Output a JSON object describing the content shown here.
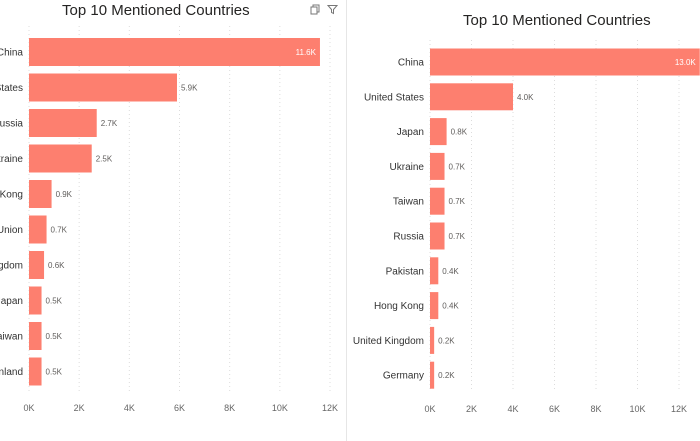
{
  "colors": {
    "bar": "#fd7f6f",
    "grid": "#dcdcdc",
    "text": "#252423"
  },
  "header_icons": [
    "copy-icon",
    "filter-icon"
  ],
  "chart_data": [
    {
      "type": "bar",
      "orientation": "horizontal",
      "title": "Top 10 Mentioned Countries",
      "categories": [
        "China",
        "United States",
        "Russia",
        "Ukraine",
        "Hong Kong",
        "European Union",
        "United Kingdom",
        "Japan",
        "Taiwan",
        "Finland"
      ],
      "visible_category_labels": [
        "China",
        "States",
        "Russia",
        "kraine",
        "Kong",
        "Union",
        "gdom",
        "Japan",
        "aiwan",
        "nland"
      ],
      "values": [
        11600,
        5900,
        2700,
        2500,
        900,
        700,
        600,
        500,
        500,
        500
      ],
      "value_labels": [
        "11.6K",
        "5.9K",
        "2.7K",
        "2.5K",
        "0.9K",
        "0.7K",
        "0.6K",
        "0.5K",
        "0.5K",
        "0.5K"
      ],
      "xlim": [
        0,
        12000
      ],
      "x_ticks": [
        "0K",
        "2K",
        "4K",
        "6K",
        "8K",
        "10K",
        "12K"
      ],
      "grid": true
    },
    {
      "type": "bar",
      "orientation": "horizontal",
      "title": "Top 10 Mentioned Countries",
      "categories": [
        "China",
        "United States",
        "Japan",
        "Ukraine",
        "Taiwan",
        "Russia",
        "Pakistan",
        "Hong Kong",
        "United Kingdom",
        "Germany"
      ],
      "values": [
        13000,
        4000,
        800,
        700,
        700,
        700,
        400,
        400,
        200,
        200
      ],
      "value_labels": [
        "13.0K",
        "4.0K",
        "0.8K",
        "0.7K",
        "0.7K",
        "0.7K",
        "0.4K",
        "0.4K",
        "0.2K",
        "0.2K"
      ],
      "xlim": [
        0,
        12000
      ],
      "x_ticks": [
        "0K",
        "2K",
        "4K",
        "6K",
        "8K",
        "10K",
        "12K"
      ],
      "grid": true
    }
  ]
}
